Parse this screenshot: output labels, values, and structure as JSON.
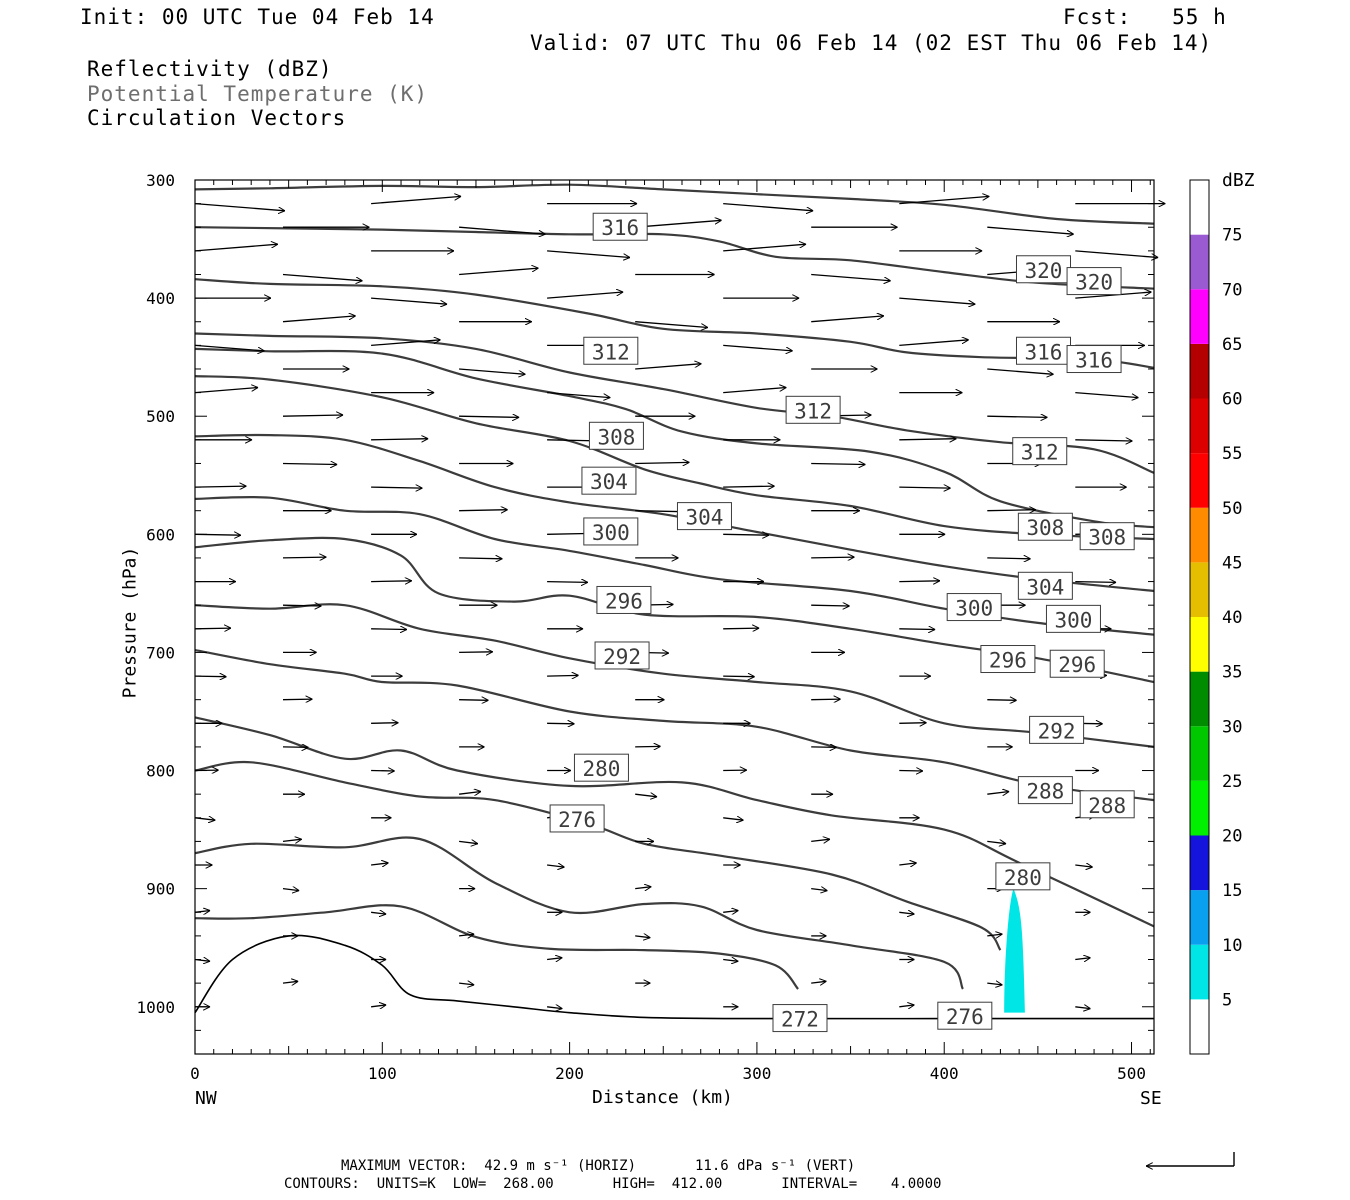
{
  "header": {
    "init": "Init: 00 UTC Tue 04 Feb 14",
    "fcst": "Fcst:   55 h",
    "valid": "Valid: 07 UTC Thu 06 Feb 14 (02 EST Thu 06 Feb 14)",
    "field1": "Reflectivity (dBZ)",
    "field2": "Potential Temperature (K)",
    "field3": "Circulation Vectors"
  },
  "footer": {
    "line1": "MAXIMUM VECTOR:  42.9 m s⁻¹ (HORIZ)       11.6 dPa s⁻¹ (VERT)",
    "line2": "CONTOURS:  UNITS=K  LOW=  268.00       HIGH=  412.00       INTERVAL=    4.0000"
  },
  "chart_data": {
    "type": "cross-section",
    "xlabel": "Distance (km)",
    "ylabel": "Pressure (hPa)",
    "xlim": [
      0,
      512
    ],
    "ylim": [
      1040,
      300
    ],
    "x_ticks": [
      0,
      100,
      200,
      300,
      400,
      500
    ],
    "y_ticks": [
      300,
      400,
      500,
      600,
      700,
      800,
      900,
      1000
    ],
    "x_end_labels": [
      "NW",
      "SE"
    ],
    "colorbar": {
      "title": "dBZ",
      "levels": [
        5,
        10,
        15,
        20,
        25,
        30,
        35,
        40,
        45,
        50,
        55,
        60,
        65,
        70,
        75
      ],
      "colors": [
        "#00e6e6",
        "#0aa0f0",
        "#1414dc",
        "#00f000",
        "#00c800",
        "#008c00",
        "#ffff00",
        "#e6be00",
        "#ff8c00",
        "#ff0000",
        "#dc0000",
        "#b40000",
        "#ff00ff",
        "#9a5ad2",
        "#ffffff"
      ]
    },
    "contour_labels": [
      {
        "text": "316",
        "x": 227,
        "p": 340
      },
      {
        "text": "320",
        "x": 453,
        "p": 376
      },
      {
        "text": "320",
        "x": 480,
        "p": 386
      },
      {
        "text": "312",
        "x": 222,
        "p": 445
      },
      {
        "text": "316",
        "x": 453,
        "p": 445
      },
      {
        "text": "316",
        "x": 480,
        "p": 452
      },
      {
        "text": "312",
        "x": 330,
        "p": 495
      },
      {
        "text": "308",
        "x": 225,
        "p": 517
      },
      {
        "text": "312",
        "x": 451,
        "p": 530
      },
      {
        "text": "304",
        "x": 221,
        "p": 555
      },
      {
        "text": "304",
        "x": 272,
        "p": 585
      },
      {
        "text": "300",
        "x": 222,
        "p": 598
      },
      {
        "text": "308",
        "x": 454,
        "p": 594
      },
      {
        "text": "308",
        "x": 487,
        "p": 602
      },
      {
        "text": "296",
        "x": 229,
        "p": 656
      },
      {
        "text": "304",
        "x": 454,
        "p": 644
      },
      {
        "text": "300",
        "x": 416,
        "p": 662
      },
      {
        "text": "300",
        "x": 469,
        "p": 672
      },
      {
        "text": "292",
        "x": 228,
        "p": 703
      },
      {
        "text": "296",
        "x": 434,
        "p": 706
      },
      {
        "text": "296",
        "x": 471,
        "p": 710
      },
      {
        "text": "292",
        "x": 460,
        "p": 766
      },
      {
        "text": "280",
        "x": 217,
        "p": 798
      },
      {
        "text": "288",
        "x": 454,
        "p": 817
      },
      {
        "text": "288",
        "x": 487,
        "p": 829
      },
      {
        "text": "276",
        "x": 204,
        "p": 841
      },
      {
        "text": "280",
        "x": 442,
        "p": 890
      },
      {
        "text": "272",
        "x": 323,
        "p": 1010
      },
      {
        "text": "276",
        "x": 411,
        "p": 1008
      }
    ],
    "isentropes": [
      {
        "theta": 320,
        "points": [
          [
            0,
            308
          ],
          [
            40,
            307
          ],
          [
            100,
            305
          ],
          [
            150,
            306
          ],
          [
            200,
            304
          ],
          [
            250,
            308
          ],
          [
            300,
            312
          ],
          [
            350,
            316
          ],
          [
            400,
            321
          ],
          [
            460,
            333
          ],
          [
            512,
            337
          ]
        ]
      },
      {
        "theta": 320,
        "points": [
          [
            0,
            340
          ],
          [
            50,
            341
          ],
          [
            100,
            342
          ],
          [
            150,
            344
          ],
          [
            200,
            346
          ],
          [
            250,
            346
          ],
          [
            280,
            352
          ],
          [
            310,
            365
          ],
          [
            350,
            368
          ],
          [
            400,
            378
          ],
          [
            450,
            387
          ],
          [
            512,
            392
          ]
        ]
      },
      {
        "theta": 316,
        "points": [
          [
            0,
            384
          ],
          [
            40,
            388
          ],
          [
            100,
            390
          ],
          [
            150,
            397
          ],
          [
            210,
            413
          ],
          [
            250,
            426
          ],
          [
            300,
            430
          ],
          [
            350,
            437
          ],
          [
            380,
            446
          ],
          [
            420,
            450
          ],
          [
            480,
            452
          ],
          [
            512,
            459
          ]
        ]
      },
      {
        "theta": 316,
        "points": [
          [
            0,
            430
          ],
          [
            40,
            432
          ],
          [
            100,
            434
          ],
          [
            150,
            443
          ],
          [
            200,
            463
          ],
          [
            250,
            477
          ],
          [
            300,
            493
          ],
          [
            340,
            500
          ],
          [
            380,
            512
          ],
          [
            430,
            522
          ],
          [
            480,
            528
          ],
          [
            512,
            548
          ]
        ]
      },
      {
        "theta": 312,
        "points": [
          [
            0,
            443
          ],
          [
            40,
            445
          ],
          [
            100,
            447
          ],
          [
            150,
            468
          ],
          [
            200,
            483
          ],
          [
            230,
            494
          ],
          [
            260,
            513
          ],
          [
            300,
            523
          ],
          [
            360,
            530
          ],
          [
            400,
            547
          ],
          [
            430,
            572
          ],
          [
            480,
            589
          ],
          [
            512,
            594
          ]
        ]
      },
      {
        "theta": 308,
        "points": [
          [
            0,
            466
          ],
          [
            40,
            469
          ],
          [
            100,
            484
          ],
          [
            150,
            506
          ],
          [
            200,
            521
          ],
          [
            240,
            545
          ],
          [
            270,
            557
          ],
          [
            300,
            567
          ],
          [
            350,
            576
          ],
          [
            400,
            593
          ],
          [
            450,
            600
          ],
          [
            512,
            604
          ]
        ]
      },
      {
        "theta": 304,
        "points": [
          [
            0,
            517
          ],
          [
            40,
            516
          ],
          [
            80,
            520
          ],
          [
            120,
            538
          ],
          [
            160,
            560
          ],
          [
            200,
            573
          ],
          [
            250,
            583
          ],
          [
            300,
            598
          ],
          [
            350,
            613
          ],
          [
            400,
            627
          ],
          [
            450,
            638
          ],
          [
            512,
            648
          ]
        ]
      },
      {
        "theta": 300,
        "points": [
          [
            0,
            570
          ],
          [
            40,
            569
          ],
          [
            80,
            580
          ],
          [
            120,
            583
          ],
          [
            160,
            604
          ],
          [
            200,
            614
          ],
          [
            240,
            626
          ],
          [
            280,
            638
          ],
          [
            350,
            648
          ],
          [
            400,
            663
          ],
          [
            450,
            675
          ],
          [
            512,
            685
          ]
        ]
      },
      {
        "theta": 296,
        "points": [
          [
            0,
            611
          ],
          [
            40,
            605
          ],
          [
            80,
            604
          ],
          [
            110,
            618
          ],
          [
            130,
            650
          ],
          [
            170,
            657
          ],
          [
            200,
            652
          ],
          [
            240,
            668
          ],
          [
            300,
            670
          ],
          [
            350,
            680
          ],
          [
            400,
            693
          ],
          [
            450,
            705
          ],
          [
            512,
            725
          ]
        ]
      },
      {
        "theta": 292,
        "points": [
          [
            0,
            660
          ],
          [
            40,
            663
          ],
          [
            80,
            660
          ],
          [
            120,
            680
          ],
          [
            160,
            690
          ],
          [
            200,
            705
          ],
          [
            250,
            718
          ],
          [
            300,
            725
          ],
          [
            350,
            733
          ],
          [
            400,
            760
          ],
          [
            450,
            768
          ],
          [
            512,
            780
          ]
        ]
      },
      {
        "theta": 288,
        "points": [
          [
            0,
            698
          ],
          [
            40,
            710
          ],
          [
            80,
            718
          ],
          [
            100,
            725
          ],
          [
            140,
            728
          ],
          [
            200,
            750
          ],
          [
            250,
            758
          ],
          [
            300,
            763
          ],
          [
            350,
            783
          ],
          [
            400,
            793
          ],
          [
            450,
            812
          ],
          [
            512,
            825
          ]
        ]
      },
      {
        "theta": 284,
        "points": [
          [
            0,
            755
          ],
          [
            40,
            770
          ],
          [
            80,
            790
          ],
          [
            110,
            783
          ],
          [
            140,
            800
          ],
          [
            200,
            813
          ],
          [
            260,
            810
          ],
          [
            300,
            825
          ],
          [
            340,
            838
          ],
          [
            400,
            850
          ],
          [
            440,
            878
          ],
          [
            512,
            932
          ]
        ]
      },
      {
        "theta": 280,
        "points": [
          [
            0,
            800
          ],
          [
            30,
            793
          ],
          [
            80,
            810
          ],
          [
            120,
            822
          ],
          [
            160,
            825
          ],
          [
            210,
            845
          ],
          [
            240,
            862
          ],
          [
            280,
            872
          ],
          [
            340,
            888
          ],
          [
            380,
            911
          ],
          [
            420,
            933
          ],
          [
            430,
            952
          ]
        ]
      },
      {
        "theta": 276,
        "points": [
          [
            0,
            870
          ],
          [
            30,
            862
          ],
          [
            80,
            865
          ],
          [
            120,
            858
          ],
          [
            160,
            895
          ],
          [
            200,
            920
          ],
          [
            240,
            913
          ],
          [
            270,
            915
          ],
          [
            300,
            935
          ],
          [
            350,
            948
          ],
          [
            400,
            962
          ],
          [
            410,
            985
          ]
        ]
      },
      {
        "theta": 272,
        "points": [
          [
            0,
            925
          ],
          [
            30,
            925
          ],
          [
            70,
            920
          ],
          [
            110,
            915
          ],
          [
            150,
            941
          ],
          [
            190,
            951
          ],
          [
            240,
            952
          ],
          [
            280,
            955
          ],
          [
            310,
            965
          ],
          [
            322,
            985
          ]
        ]
      }
    ],
    "surface": [
      [
        0,
        1005
      ],
      [
        20,
        960
      ],
      [
        50,
        940
      ],
      [
        80,
        948
      ],
      [
        100,
        965
      ],
      [
        115,
        990
      ],
      [
        140,
        995
      ],
      [
        170,
        1000
      ],
      [
        200,
        1005
      ],
      [
        240,
        1009
      ],
      [
        300,
        1010
      ],
      [
        400,
        1010
      ],
      [
        512,
        1010
      ]
    ],
    "reflectivity_echo": {
      "dbz_level": 5,
      "x_range": [
        432,
        442
      ],
      "p_range": [
        900,
        1005
      ]
    },
    "wind_vectors_note": "Circulation vectors: westerly (left to right) flow, strongest aloft (~300-450 hPa), weakening toward the surface"
  }
}
